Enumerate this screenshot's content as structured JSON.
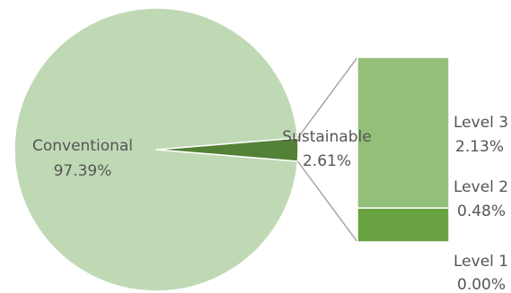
{
  "chart_data": {
    "type": "pie",
    "subtype": "pie-of-bar",
    "slices": [
      {
        "label": "Conventional",
        "value": 97.39,
        "value_label": "97.39%",
        "color": "#c0d9b5"
      },
      {
        "label": "Sustainable",
        "value": 2.61,
        "value_label": "2.61%",
        "color": "#538135"
      }
    ],
    "breakdown": {
      "of": "Sustainable",
      "segments": [
        {
          "label": "Level 3",
          "value": 2.13,
          "value_label": "2.13%",
          "color": "#93bf79"
        },
        {
          "label": "Level 2",
          "value": 0.48,
          "value_label": "0.48%",
          "color": "#6aa342"
        },
        {
          "label": "Level 1",
          "value": 0.0,
          "value_label": "0.00%",
          "color": "#538135"
        }
      ]
    },
    "connector_color": "#a6a6a6",
    "legend": "none"
  }
}
